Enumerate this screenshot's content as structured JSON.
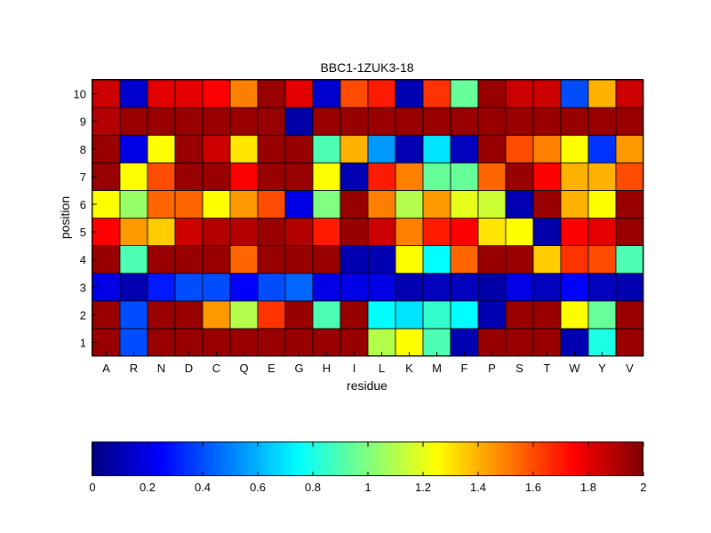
{
  "chart_data": {
    "type": "heatmap",
    "title": "BBC1-1ZUK3-18",
    "xlabel": "residue",
    "ylabel": "position",
    "x_categories": [
      "A",
      "R",
      "N",
      "D",
      "C",
      "Q",
      "E",
      "G",
      "H",
      "I",
      "L",
      "K",
      "M",
      "F",
      "P",
      "S",
      "T",
      "W",
      "Y",
      "V"
    ],
    "y_categories": [
      "1",
      "2",
      "3",
      "4",
      "5",
      "6",
      "7",
      "8",
      "9",
      "10"
    ],
    "colormap": "jet",
    "clim": [
      0,
      2
    ],
    "colorbar": {
      "orientation": "horizontal",
      "placement": "bottom",
      "ticks": [
        "0",
        "0.2",
        "0.4",
        "0.6",
        "0.8",
        "1",
        "1.2",
        "1.4",
        "1.6",
        "1.8",
        "2"
      ]
    },
    "values_by_position": {
      "10": [
        1.85,
        0.15,
        1.8,
        1.8,
        1.75,
        1.5,
        1.95,
        1.8,
        0.15,
        1.6,
        1.7,
        0.1,
        1.65,
        0.95,
        1.95,
        1.85,
        1.85,
        0.4,
        1.4,
        1.85
      ],
      "9": [
        1.9,
        1.95,
        1.95,
        1.95,
        1.95,
        1.95,
        1.95,
        0.08,
        1.95,
        1.95,
        1.95,
        1.95,
        1.95,
        1.95,
        1.95,
        1.95,
        1.95,
        1.95,
        1.95,
        1.95
      ],
      "8": [
        1.95,
        0.2,
        1.25,
        1.95,
        1.85,
        1.3,
        1.95,
        1.95,
        0.9,
        1.4,
        0.55,
        0.1,
        0.7,
        0.12,
        1.95,
        1.6,
        1.5,
        1.25,
        0.35,
        1.45
      ],
      "7": [
        1.95,
        1.25,
        1.6,
        1.95,
        1.95,
        1.75,
        1.95,
        1.95,
        1.25,
        0.1,
        1.7,
        1.5,
        0.95,
        0.95,
        1.55,
        1.95,
        1.75,
        1.4,
        1.4,
        1.6
      ],
      "6": [
        1.25,
        1.05,
        1.55,
        1.55,
        1.25,
        1.45,
        1.6,
        0.2,
        1.0,
        1.95,
        1.5,
        1.1,
        1.45,
        1.2,
        1.15,
        0.1,
        1.95,
        1.4,
        1.25,
        1.95
      ],
      "5": [
        1.75,
        1.45,
        1.35,
        1.85,
        1.9,
        1.9,
        1.95,
        1.9,
        1.7,
        1.95,
        1.85,
        1.5,
        1.7,
        1.75,
        1.3,
        1.25,
        0.08,
        1.75,
        1.8,
        1.95
      ],
      "4": [
        1.95,
        0.9,
        1.95,
        1.95,
        1.95,
        1.55,
        1.95,
        1.95,
        1.95,
        0.1,
        0.1,
        1.25,
        0.75,
        1.55,
        1.95,
        1.95,
        1.35,
        1.65,
        1.6,
        0.9
      ],
      "3": [
        0.2,
        0.1,
        0.3,
        0.4,
        0.4,
        0.25,
        0.4,
        0.45,
        0.2,
        0.2,
        0.2,
        0.1,
        0.12,
        0.12,
        0.08,
        0.2,
        0.12,
        0.25,
        0.12,
        0.1
      ],
      "2": [
        1.95,
        0.4,
        1.95,
        1.95,
        1.45,
        1.1,
        1.65,
        1.95,
        0.9,
        1.95,
        0.75,
        0.7,
        0.85,
        0.75,
        0.1,
        1.95,
        1.95,
        1.25,
        0.95,
        1.95
      ],
      "1": [
        1.95,
        0.4,
        1.95,
        1.95,
        1.95,
        1.95,
        1.95,
        1.95,
        1.95,
        1.95,
        1.1,
        1.25,
        0.9,
        0.1,
        1.95,
        1.95,
        1.95,
        0.1,
        0.8,
        1.95
      ]
    }
  }
}
